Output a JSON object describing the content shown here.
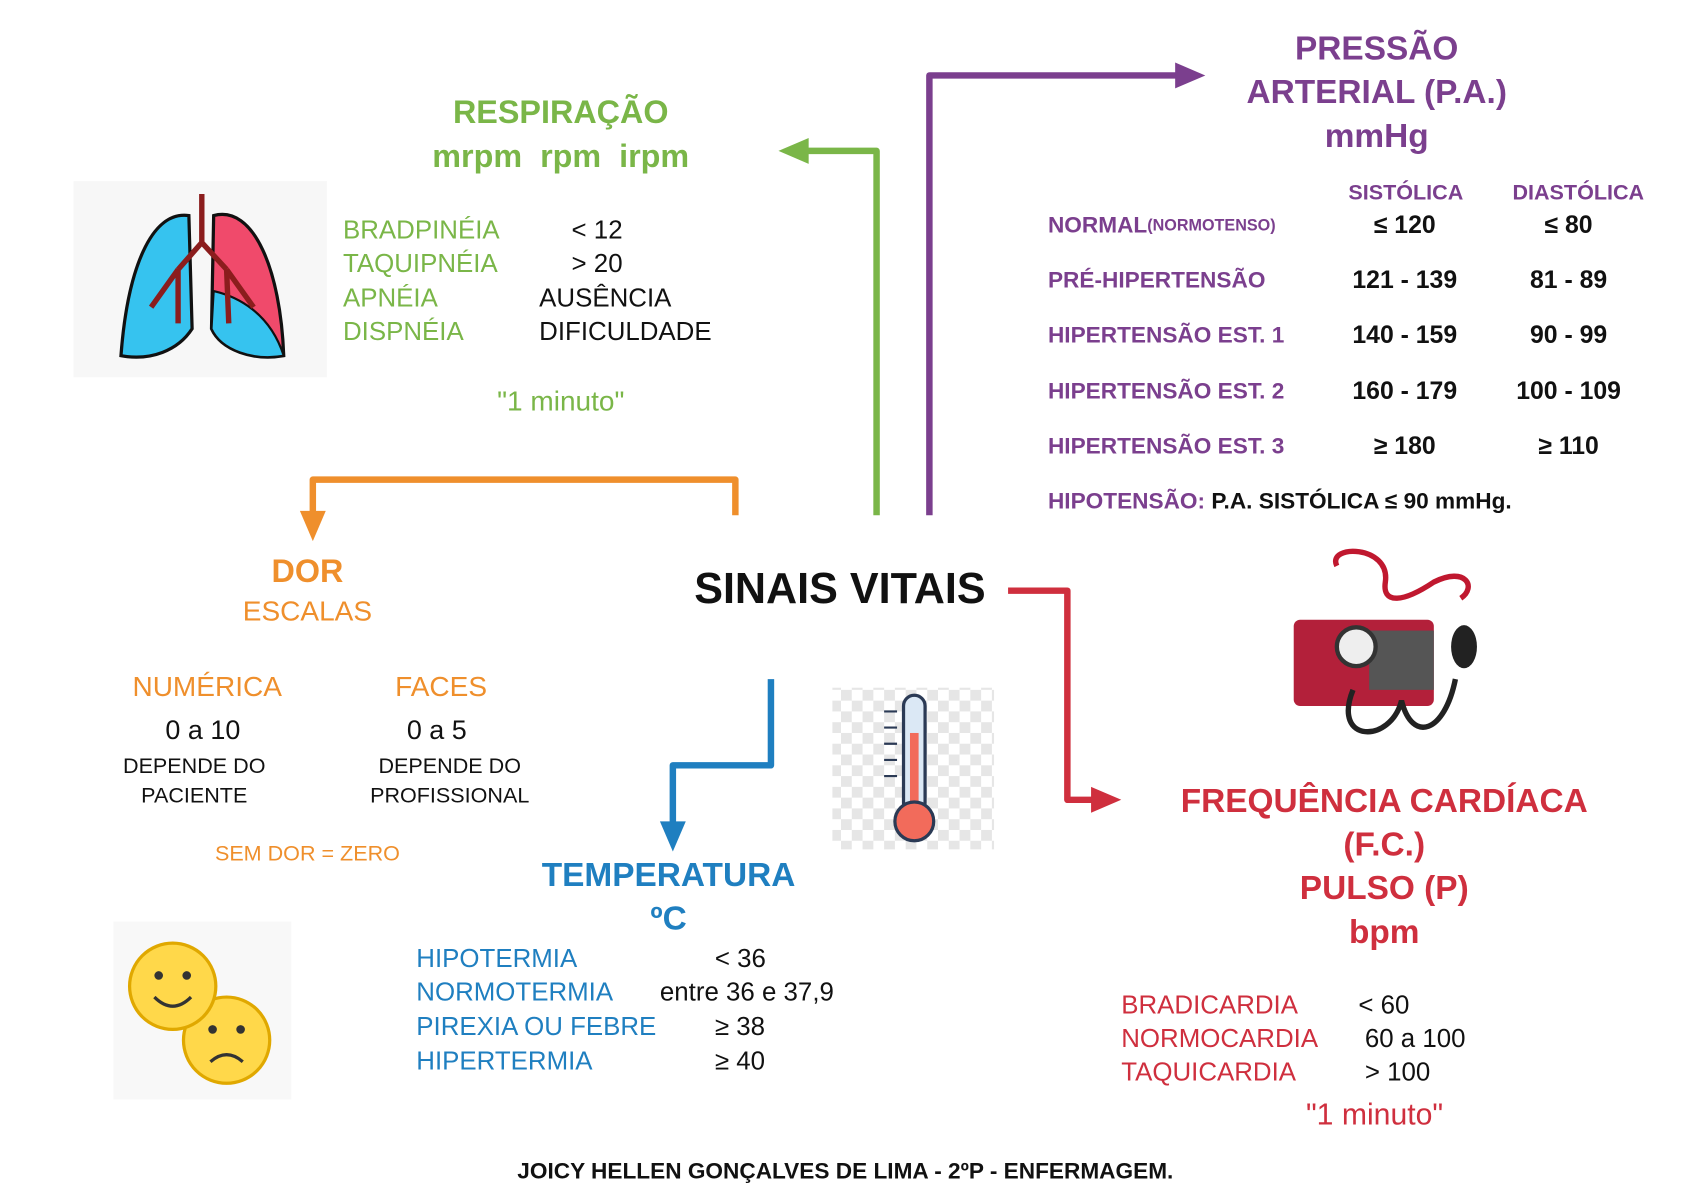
{
  "center": "SINAIS VITAIS",
  "respiracao": {
    "title": "RESPIRAÇÃO",
    "units": "mrpm  rpm  irpm",
    "rows": [
      [
        "BRADPINÉIA",
        "< 12"
      ],
      [
        "TAQUIPNÉIA",
        "> 20"
      ],
      [
        "APNÉIA",
        "AUSÊNCIA"
      ],
      [
        "DISPNÉIA",
        "DIFICULDADE"
      ]
    ],
    "note": "\"1 minuto\""
  },
  "pressao": {
    "title": [
      "PRESSÃO",
      "ARTERIAL (P.A.)",
      "mmHg"
    ],
    "headers": [
      "SISTÓLICA",
      "DIASTÓLICA"
    ],
    "rows": [
      {
        "label": "NORMAL",
        "sub": "(NORMOTENSO)",
        "sys": "≤ 120",
        "dia": "≤ 80"
      },
      {
        "label": "PRÉ-HIPERTENSÃO",
        "sys": "121 - 139",
        "dia": "81 - 89"
      },
      {
        "label": "HIPERTENSÃO EST. 1",
        "sys": "140 - 159",
        "dia": "90 - 99"
      },
      {
        "label": "HIPERTENSÃO EST. 2",
        "sys": "160 - 179",
        "dia": "100 - 109"
      },
      {
        "label": "HIPERTENSÃO EST. 3",
        "sys": "≥ 180",
        "dia": "≥ 110"
      }
    ],
    "hipotensao": {
      "label": "HIPOTENSÃO:",
      "text": "P.A. SISTÓLICA ≤ 90 mmHg."
    }
  },
  "dor": {
    "title": "DOR",
    "subtitle": "ESCALAS",
    "scales": [
      {
        "name": "NUMÉRICA",
        "range": "0 a 10",
        "note": [
          "DEPENDE DO",
          "PACIENTE"
        ]
      },
      {
        "name": "FACES",
        "range": "0 a 5",
        "note": [
          "DEPENDE DO",
          "PROFISSIONAL"
        ]
      }
    ],
    "footnote": "SEM DOR = ZERO"
  },
  "temperatura": {
    "title": "TEMPERATURA",
    "unit": "ºC",
    "rows": [
      [
        "HIPOTERMIA",
        "< 36"
      ],
      [
        "NORMOTERMIA",
        "entre 36 e 37,9"
      ],
      [
        "PIREXIA OU FEBRE",
        "≥ 38"
      ],
      [
        "HIPERTERMIA",
        "≥ 40"
      ]
    ]
  },
  "frequencia": {
    "title": [
      "FREQUÊNCIA CARDÍACA",
      "(F.C.)",
      "PULSO (P)",
      "bpm"
    ],
    "rows": [
      [
        "BRADICARDIA",
        "< 60"
      ],
      [
        "NORMOCARDIA",
        "60 a 100"
      ],
      [
        "TAQUICARDIA",
        "> 100"
      ]
    ],
    "note": "\"1 minuto\""
  },
  "footer": "JOICY HELLEN GONÇALVES DE LIMA - 2ºP - ENFERMAGEM."
}
